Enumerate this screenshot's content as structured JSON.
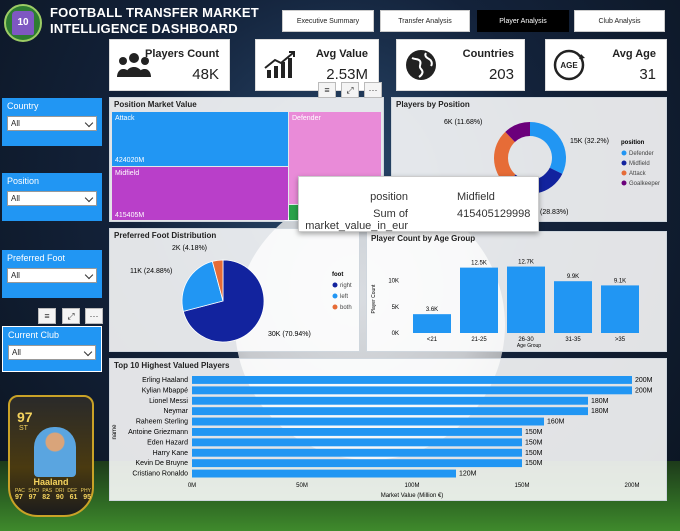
{
  "app": {
    "title": "FOOTBALL TRANSFER MARKET INTELLIGENCE DASHBOARD",
    "logo_text": "10"
  },
  "tabs": [
    {
      "label": "Executive Summary",
      "active": false
    },
    {
      "label": "Transfer Analysis",
      "active": false
    },
    {
      "label": "Player Analysis",
      "active": true
    },
    {
      "label": "Club Analysis",
      "active": false
    }
  ],
  "kpis": [
    {
      "label": "Players Count",
      "value": "48K",
      "icon": "players-icon"
    },
    {
      "label": "Avg Value",
      "value": "2.53M",
      "icon": "trend-chart-icon"
    },
    {
      "label": "Countries",
      "value": "203",
      "icon": "globe-icon"
    },
    {
      "label": "Avg Age",
      "value": "31",
      "icon": "age-icon",
      "icon_text": "AGE"
    }
  ],
  "slicers": [
    {
      "label": "Country",
      "value": "All"
    },
    {
      "label": "Position",
      "value": "All"
    },
    {
      "label": "Preferred Foot",
      "value": "All"
    },
    {
      "label": "Current Club",
      "value": "All"
    }
  ],
  "visual_controls": {
    "filter": "≡",
    "focus": "⤢",
    "more": "···"
  },
  "colors": {
    "primary": "#2196f3",
    "dark_blue": "#12239e",
    "orange": "#e66c37",
    "purple": "#6b007b",
    "magenta": "#c53bd0",
    "pink": "#e98bd8",
    "green": "#2aa24a"
  },
  "chart_data": [
    {
      "type": "treemap",
      "title": "Position Market Value",
      "items": [
        {
          "name": "Attack",
          "value": 424020,
          "label": "424020M",
          "color": "#2196f3"
        },
        {
          "name": "Midfield",
          "value": 415405,
          "label": "415405M",
          "color": "#b93fc9"
        },
        {
          "name": "Defender",
          "value": null,
          "label": "",
          "color": "#e98bd8"
        },
        {
          "name": "Goalkeeper",
          "value": null,
          "label": "",
          "color": "#2aa24a"
        }
      ]
    },
    {
      "type": "pie",
      "title": "Players by Position",
      "legend_title": "position",
      "slices": [
        {
          "name": "Defender",
          "value": 15,
          "label": "15K (32.2%)",
          "color": "#2196f3"
        },
        {
          "name": "Midfield",
          "value": 13.6,
          "label": "(28.83%)",
          "color": "#12239e"
        },
        {
          "name": "Attack",
          "value": 12.3,
          "label": "",
          "color": "#e66c37"
        },
        {
          "name": "Goalkeeper",
          "value": 5.6,
          "label": "6K (11.68%)",
          "color": "#6b007b"
        }
      ]
    },
    {
      "type": "pie",
      "title": "Preferred Foot Distribution",
      "legend_title": "foot",
      "slices": [
        {
          "name": "right",
          "value": 70.94,
          "label": "30K (70.94%)",
          "color": "#12239e"
        },
        {
          "name": "left",
          "value": 24.88,
          "label": "11K (24.88%)",
          "color": "#2196f3"
        },
        {
          "name": "both",
          "value": 4.18,
          "label": "2K (4.18%)",
          "color": "#e66c37"
        }
      ]
    },
    {
      "type": "bar",
      "title": "Player Count by Age Group",
      "xlabel": "Age Group",
      "ylabel": "Player Count",
      "categories": [
        "<21",
        "21-25",
        "26-30",
        "31-35",
        ">35"
      ],
      "values": [
        3.6,
        12.5,
        12.7,
        9.9,
        9.1
      ],
      "value_labels": [
        "3.6K",
        "12.5K",
        "12.7K",
        "9.9K",
        "9.1K"
      ],
      "yticks": [
        "0K",
        "5K",
        "10K"
      ],
      "ylim": [
        0,
        13
      ]
    },
    {
      "type": "bar",
      "orientation": "horizontal",
      "title": "Top 10 Highest Valued Players",
      "xlabel": "Market Value (Million €)",
      "ylabel": "name",
      "categories": [
        "Erling Haaland",
        "Kylian Mbappé",
        "Lionel Messi",
        "Neymar",
        "Raheem Sterling",
        "Antoine Griezmann",
        "Eden Hazard",
        "Harry Kane",
        "Kevin De Bruyne",
        "Cristiano Ronaldo"
      ],
      "values": [
        200,
        200,
        180,
        180,
        160,
        150,
        150,
        150,
        150,
        120
      ],
      "value_labels": [
        "200M",
        "200M",
        "180M",
        "180M",
        "160M",
        "150M",
        "150M",
        "150M",
        "150M",
        "120M"
      ],
      "xticks": [
        "0M",
        "50M",
        "100M",
        "150M",
        "200M"
      ],
      "xlim": [
        0,
        200
      ]
    }
  ],
  "tooltip": {
    "rows": [
      {
        "key": "position",
        "value": "Midfield"
      },
      {
        "key": "Sum of market_value_in_eur",
        "value": "415405129998"
      }
    ]
  },
  "player_card": {
    "rating": "97",
    "position": "ST",
    "name": "Haaland",
    "stat_labels": [
      "PAC",
      "SHO",
      "PAS",
      "DRI",
      "DEF",
      "PHY"
    ],
    "stat_values": [
      "97",
      "97",
      "82",
      "90",
      "61",
      "95"
    ]
  }
}
